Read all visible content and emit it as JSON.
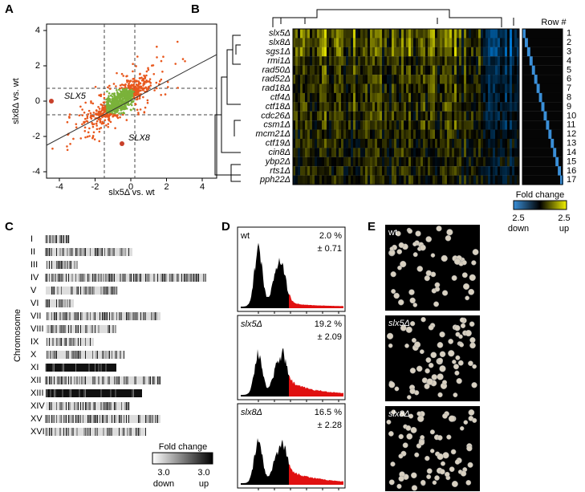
{
  "panels": {
    "A": {
      "label": "A",
      "x_axis_label": "slx5Δ vs. wt",
      "y_axis_label": "slx8Δ vs. wt",
      "xticks": [
        "-4",
        "-2",
        "0",
        "2",
        "4"
      ],
      "yticks": [
        "4",
        "2",
        "0",
        "-2",
        "-4"
      ],
      "annotations": [
        "SLX5",
        "SLX8"
      ]
    },
    "B": {
      "label": "B",
      "row_header": "Row #",
      "rows": [
        "slx5Δ",
        "slx8Δ",
        "sgs1Δ",
        "rmi1Δ",
        "rad50Δ",
        "rad52Δ",
        "rad18Δ",
        "ctf4Δ",
        "ctf18Δ",
        "cdc26Δ",
        "csm1Δ",
        "mcm21Δ",
        "ctf19Δ",
        "cin8Δ",
        "ybp2Δ",
        "rts1Δ",
        "pph22Δ"
      ],
      "row_numbers": [
        "1",
        "2",
        "3",
        "4",
        "5",
        "6",
        "7",
        "8",
        "9",
        "10",
        "11",
        "12",
        "13",
        "14",
        "15",
        "16",
        "17"
      ],
      "legend": {
        "title": "Fold change",
        "min": "2.5",
        "max": "2.5",
        "low": "down",
        "high": "up"
      }
    },
    "C": {
      "label": "C",
      "y_axis_label": "Chromosome",
      "chromosomes": [
        "I",
        "II",
        "III",
        "IV",
        "V",
        "VI",
        "VII",
        "VIII",
        "IX",
        "X",
        "XI",
        "XII",
        "XIII",
        "XIV",
        "XV",
        "XVI"
      ],
      "legend": {
        "title": "Fold change",
        "min": "3.0",
        "max": "3.0",
        "low": "down",
        "high": "up"
      }
    },
    "D": {
      "label": "D",
      "histograms": [
        {
          "name": "wt",
          "percent": "2.0 %",
          "error": "± 0.71"
        },
        {
          "name": "slx5Δ",
          "percent": "19.2 %",
          "error": "± 2.09"
        },
        {
          "name": "slx8Δ",
          "percent": "16.5 %",
          "error": "± 2.28"
        }
      ]
    },
    "E": {
      "label": "E",
      "images": [
        "wt",
        "slx5Δ",
        "slx8Δ"
      ]
    }
  }
}
